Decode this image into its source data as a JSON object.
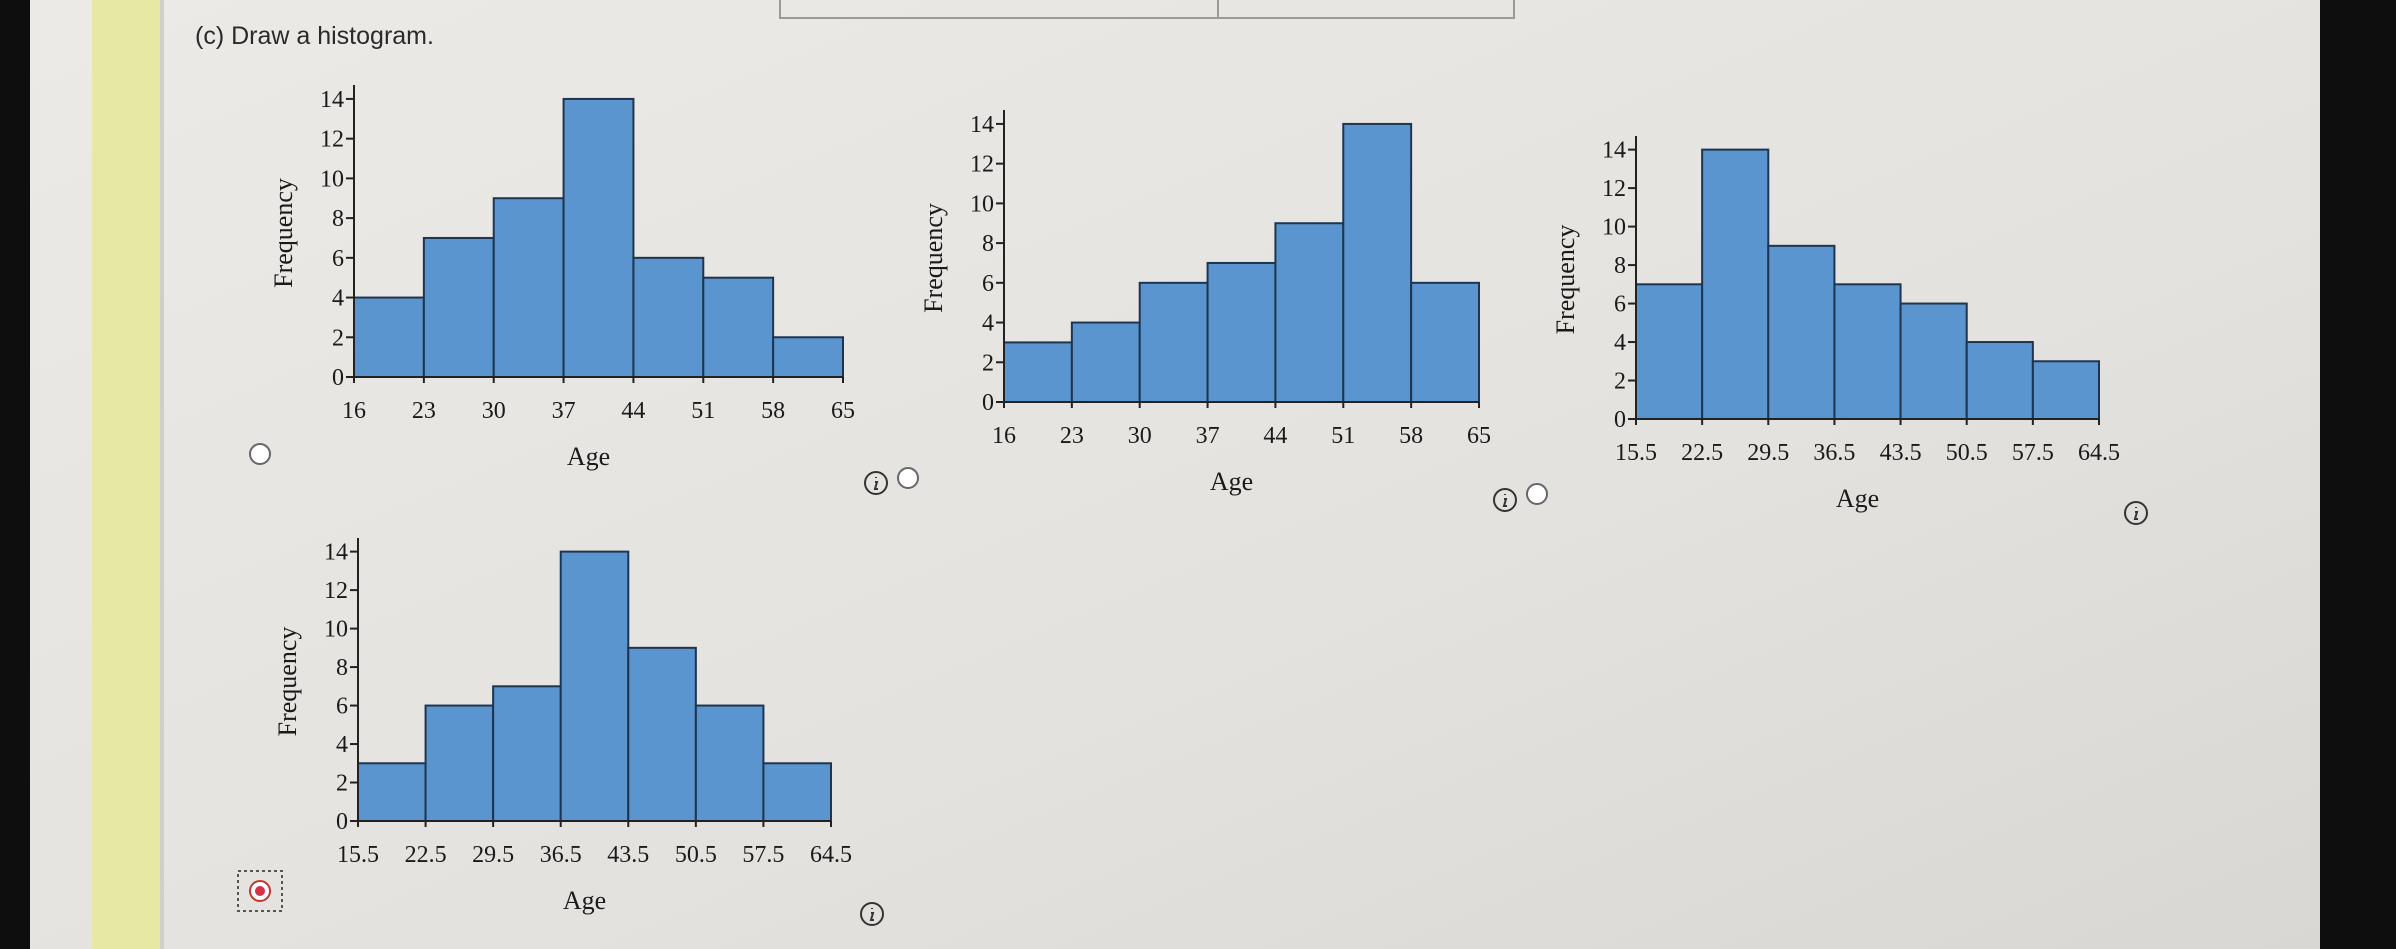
{
  "prompt": "(c) Draw a histogram.",
  "selected_option": 3,
  "chart_data": [
    {
      "type": "histogram",
      "xlabel": "Age",
      "ylabel": "Frequency",
      "color": "#5b95cf",
      "bins": [
        16,
        23,
        30,
        37,
        44,
        51,
        58,
        65
      ],
      "values": [
        4,
        7,
        9,
        14,
        6,
        5,
        2
      ],
      "xlim": [
        16,
        65
      ],
      "xticks": [
        16,
        23,
        30,
        37,
        44,
        51,
        58,
        65
      ],
      "ylim": [
        0,
        14.5
      ],
      "yticks": [
        0,
        2,
        4,
        6,
        8,
        10,
        12,
        14
      ]
    },
    {
      "type": "histogram",
      "xlabel": "Age",
      "ylabel": "Frequency",
      "color": "#5b95cf",
      "bins": [
        16,
        23,
        30,
        37,
        44,
        51,
        58,
        65
      ],
      "values": [
        3,
        4,
        6,
        7,
        9,
        14,
        6
      ],
      "xlim": [
        16,
        65
      ],
      "xticks": [
        16,
        23,
        30,
        37,
        44,
        51,
        58,
        65
      ],
      "ylim": [
        0,
        14.5
      ],
      "yticks": [
        0,
        2,
        4,
        6,
        8,
        10,
        12,
        14
      ]
    },
    {
      "type": "histogram",
      "xlabel": "Age",
      "ylabel": "Frequency",
      "color": "#5b95cf",
      "bins": [
        15.5,
        22.5,
        29.5,
        36.5,
        43.5,
        50.5,
        57.5,
        64.5
      ],
      "values": [
        7,
        14,
        9,
        7,
        6,
        4,
        3
      ],
      "xlim": [
        15.5,
        64.5
      ],
      "xticks": [
        15.5,
        22.5,
        29.5,
        36.5,
        43.5,
        50.5,
        57.5,
        64.5
      ],
      "ylim": [
        0,
        14.5
      ],
      "yticks": [
        0,
        2,
        4,
        6,
        8,
        10,
        12,
        14
      ]
    },
    {
      "type": "histogram",
      "xlabel": "Age",
      "ylabel": "Frequency",
      "color": "#5b95cf",
      "bins": [
        15.5,
        22.5,
        29.5,
        36.5,
        43.5,
        50.5,
        57.5,
        64.5
      ],
      "values": [
        3,
        6,
        7,
        14,
        9,
        6,
        3
      ],
      "xlim": [
        15.5,
        64.5
      ],
      "xticks": [
        15.5,
        22.5,
        29.5,
        36.5,
        43.5,
        50.5,
        57.5,
        64.5
      ],
      "ylim": [
        0,
        14.5
      ],
      "yticks": [
        0,
        2,
        4,
        6,
        8,
        10,
        12,
        14
      ]
    }
  ]
}
